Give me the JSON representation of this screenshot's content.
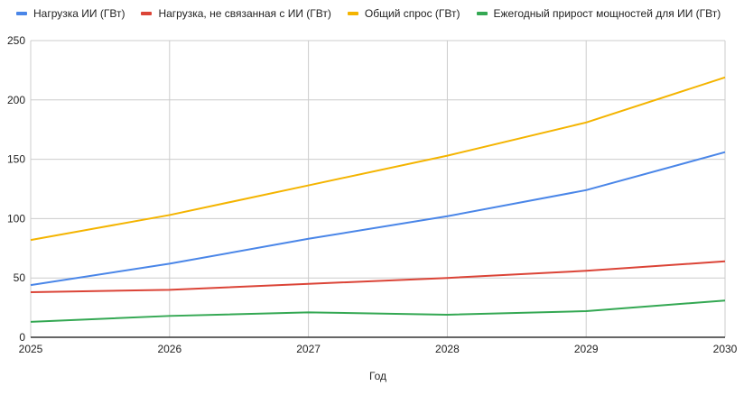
{
  "chart_data": {
    "type": "line",
    "title": "",
    "xlabel": "Год",
    "ylabel": "",
    "categories": [
      "2025",
      "2026",
      "2027",
      "2028",
      "2029",
      "2030"
    ],
    "ylim": [
      0,
      250
    ],
    "yticks": [
      "0",
      "50",
      "100",
      "150",
      "200",
      "250"
    ],
    "grid": true,
    "legend_position": "top",
    "series": [
      {
        "name": "Нагрузка ИИ (ГВт)",
        "color": "#4a86e8",
        "values": [
          44,
          62,
          83,
          102,
          124,
          156
        ]
      },
      {
        "name": "Нагрузка, не связанная с ИИ (ГВт)",
        "color": "#db4437",
        "values": [
          38,
          40,
          45,
          50,
          56,
          64
        ]
      },
      {
        "name": "Общий спрос (ГВт)",
        "color": "#f4b400",
        "values": [
          82,
          103,
          128,
          153,
          181,
          219
        ]
      },
      {
        "name": "Ежегодный прирост мощностей для ИИ (ГВт)",
        "color": "#34a853",
        "values": [
          13,
          18,
          21,
          19,
          22,
          31
        ]
      }
    ]
  }
}
